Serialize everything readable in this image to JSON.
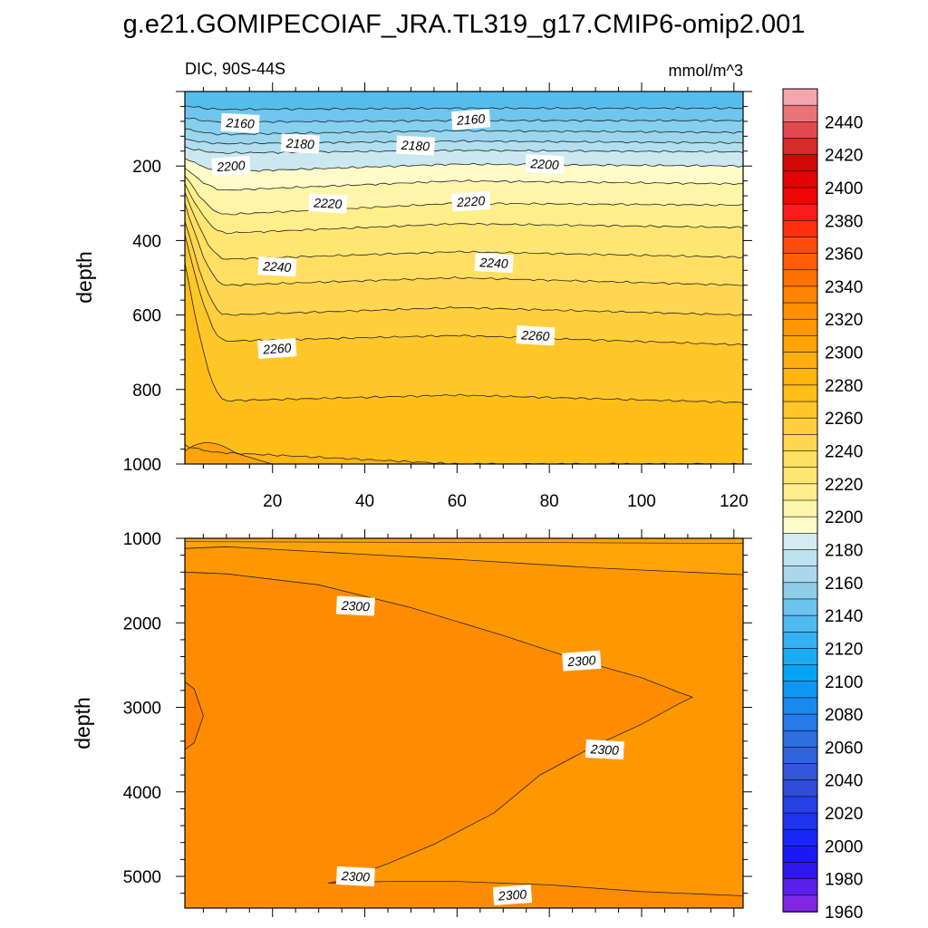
{
  "title": "g.e21.GOMIPECOIAF_JRA.TL319_g17.CMIP6-omip2.001",
  "chart_data": [
    {
      "type": "contour",
      "panel": "upper",
      "left_label": "DIC, 90S-44S",
      "right_label": "mmol/m^3",
      "ylabel": "depth",
      "xlabel": "",
      "x_ticks": [
        "20",
        "40",
        "60",
        "80",
        "100",
        "120"
      ],
      "y_ticks": [
        "200",
        "400",
        "600",
        "800",
        "1000"
      ],
      "xlim": [
        1,
        122
      ],
      "ylim": [
        0,
        1000
      ],
      "y_reversed": true,
      "contour_labels": [
        {
          "text": "2160",
          "x": 13,
          "y": 85
        },
        {
          "text": "2160",
          "x": 63,
          "y": 75
        },
        {
          "text": "2180",
          "x": 26,
          "y": 140
        },
        {
          "text": "2180",
          "x": 51,
          "y": 145
        },
        {
          "text": "2200",
          "x": 11,
          "y": 200
        },
        {
          "text": "2200",
          "x": 79,
          "y": 195
        },
        {
          "text": "2220",
          "x": 32,
          "y": 300
        },
        {
          "text": "2220",
          "x": 63,
          "y": 295
        },
        {
          "text": "2240",
          "x": 21,
          "y": 470
        },
        {
          "text": "2240",
          "x": 68,
          "y": 460
        },
        {
          "text": "2260",
          "x": 21,
          "y": 690
        },
        {
          "text": "2260",
          "x": 77,
          "y": 655
        }
      ]
    },
    {
      "type": "contour",
      "panel": "lower",
      "ylabel": "depth",
      "x_ticks": [],
      "y_ticks": [
        "1000",
        "2000",
        "3000",
        "4000",
        "5000"
      ],
      "xlim": [
        1,
        122
      ],
      "ylim": [
        1000,
        5375
      ],
      "y_reversed": true,
      "contour_labels": [
        {
          "text": "2300",
          "x": 38,
          "y": 1800
        },
        {
          "text": "2300",
          "x": 87,
          "y": 2450
        },
        {
          "text": "2300",
          "x": 92,
          "y": 3500
        },
        {
          "text": "2300",
          "x": 38,
          "y": 5000
        },
        {
          "text": "2300",
          "x": 72,
          "y": 5220
        }
      ]
    }
  ],
  "colorbar": {
    "labels": [
      "2440",
      "2420",
      "2400",
      "2380",
      "2360",
      "2340",
      "2320",
      "2300",
      "2280",
      "2260",
      "2240",
      "2220",
      "2200",
      "2180",
      "2160",
      "2140",
      "2120",
      "2100",
      "2080",
      "2060",
      "2040",
      "2020",
      "2000",
      "1980",
      "1960"
    ],
    "colors": [
      "#f4a6ad",
      "#ea7378",
      "#e04a4f",
      "#d82a2a",
      "#d10808",
      "#e10505",
      "#f00505",
      "#ff1b1b",
      "#ff3010",
      "#ff4a0a",
      "#ff5e05",
      "#ff7000",
      "#ff8400",
      "#ff9100",
      "#ff9800",
      "#ffa408",
      "#ffad10",
      "#ffb510",
      "#ffbd18",
      "#ffc628",
      "#ffce3c",
      "#ffd650",
      "#ffde62",
      "#ffe673",
      "#ffee8a",
      "#fff5a8",
      "#fffbc8",
      "#d6eaf2",
      "#bde2f0",
      "#a9d8ed",
      "#8dcde8",
      "#6ec3ec",
      "#4fbaf0",
      "#32b2f2",
      "#1aabf3",
      "#07a4f5",
      "#0f97f3",
      "#1b88ef",
      "#267aea",
      "#2d6ee4",
      "#3163de",
      "#3357d8",
      "#2f4dd8",
      "#2640e6",
      "#1e33f2",
      "#1826f8",
      "#1b18f5",
      "#3216f0",
      "#5a20ea",
      "#7e28e6"
    ]
  }
}
